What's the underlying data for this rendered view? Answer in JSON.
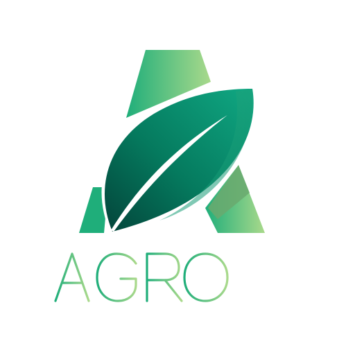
{
  "logo": {
    "wordmark": "AGRO",
    "colors": {
      "a_gradient_start": "#1fae7a",
      "a_gradient_end": "#a9d98b",
      "leaf_dark": "#03443a",
      "leaf_mid": "#057a5e",
      "leaf_light": "#10a883",
      "leaf_rim": "#2cb184",
      "word_gradient_start": "#1fae7a",
      "word_gradient_end": "#a9d98b"
    },
    "icons": [
      "letter-a-shape",
      "leaf-icon"
    ]
  }
}
